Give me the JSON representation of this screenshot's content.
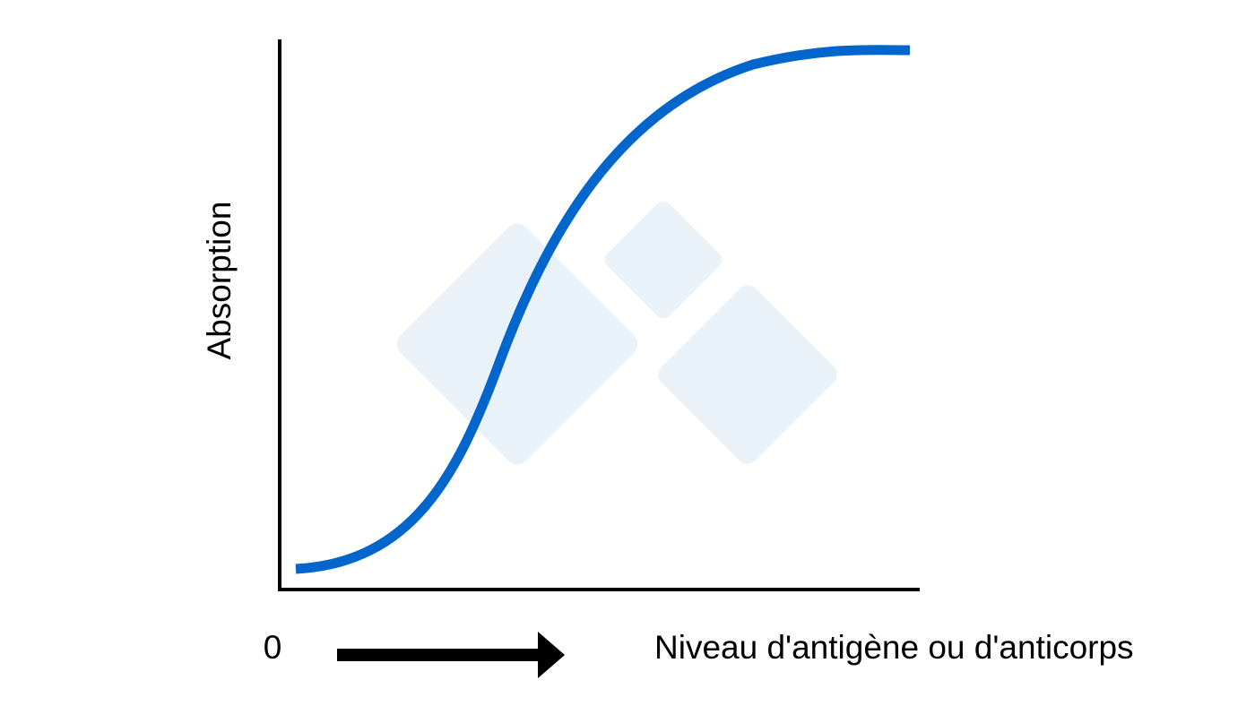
{
  "y_axis_label": "Absorption",
  "x_origin_label": "0",
  "x_axis_label": "Niveau d'antigène ou d'anticorps"
}
